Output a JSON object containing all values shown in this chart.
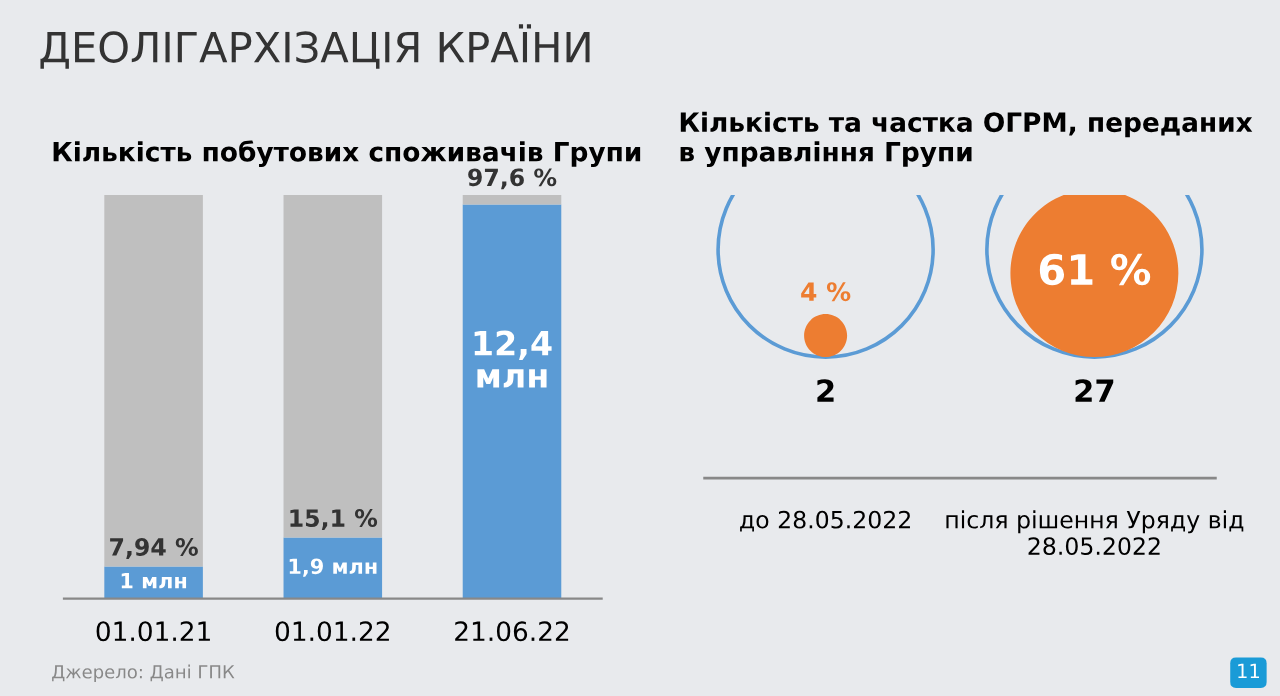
{
  "chart_data": [
    {
      "type": "bar",
      "title": "Кількість побутових споживачів Групи",
      "categories": [
        "01.01.21",
        "01.01.22",
        "21.06.22"
      ],
      "stacked": true,
      "ylim": [
        0,
        100
      ],
      "tick_labels": "x",
      "series": [
        {
          "color": "#5b9bd5",
          "values": [
            7.94,
            15.1,
            97.6
          ],
          "value_labels": [
            "7,94 %",
            "15,1 %",
            "97,6 %"
          ]
        },
        {
          "color": "#bfbfbf",
          "values": [
            92.06,
            84.9,
            2.4
          ]
        }
      ],
      "annotations": [
        "ДЕОЛІГАРХІЗАЦІЯ КРАЇНИ",
        "1 млн",
        "1,9 млн",
        "12,4 млн",
        "Джерело: Дані ГПК"
      ]
    },
    {
      "type": "other",
      "title": "Кількість та частка ОГРМ, переданих в управління Групи",
      "categories": [
        "до 28.05.2022",
        "після рішення Уряду від 28.05.2022"
      ],
      "series": [
        {
          "color": "#ed7d31",
          "values": [
            4,
            61
          ],
          "value_labels": [
            "4 %",
            "61 %"
          ]
        }
      ],
      "annotations": [
        {
          "text": "2",
          "x": "до 28.05.2022"
        },
        {
          "text": "27",
          "x": "після рішення Уряду від 28.05.2022"
        },
        "11"
      ]
    }
  ]
}
